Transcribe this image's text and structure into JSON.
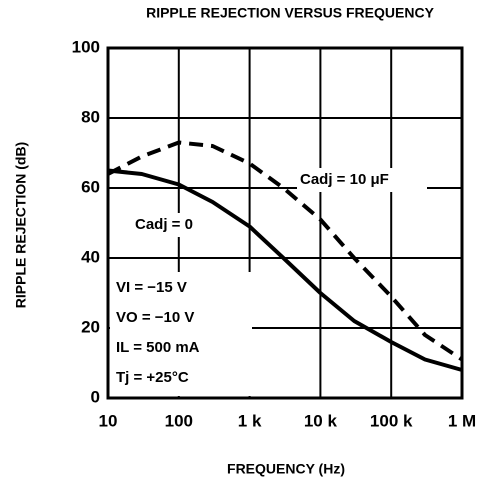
{
  "chart_data": {
    "type": "line",
    "title": "RIPPLE REJECTION VERSUS FREQUENCY",
    "x_label": "FREQUENCY (Hz)",
    "y_label": "RIPPLE REJECTION (dB)",
    "x": [
      10,
      30,
      100,
      300,
      1000,
      3000,
      10000,
      30000,
      100000,
      300000,
      1000000
    ],
    "series": [
      {
        "name": "Cadj = 0",
        "color": "#000000",
        "dash": false,
        "values": [
          65,
          64,
          61,
          56,
          49,
          40,
          30,
          22,
          16,
          11,
          8
        ]
      },
      {
        "name": "Cadj = 10 μF",
        "color": "#000000",
        "dash": true,
        "values": [
          64,
          69,
          73,
          72,
          67,
          60,
          51,
          40,
          29,
          18,
          11
        ]
      }
    ],
    "xlim": [
      10,
      1000000
    ],
    "xscale": "log",
    "xticks": [
      10,
      100,
      {
        "value": 1000,
        "label": "1 k"
      },
      {
        "value": 10000,
        "label": "10 k"
      },
      {
        "value": 100000,
        "label": "100 k"
      },
      {
        "value": 1000000,
        "label": "1 M"
      }
    ],
    "ylim": [
      0,
      100
    ],
    "yticks": [
      0,
      20,
      40,
      60,
      80,
      100
    ],
    "grid": true,
    "annotations": [
      "VI = −15 V",
      "VO = −10 V",
      "IL = 500 mA",
      "Tj = +25°C"
    ]
  }
}
